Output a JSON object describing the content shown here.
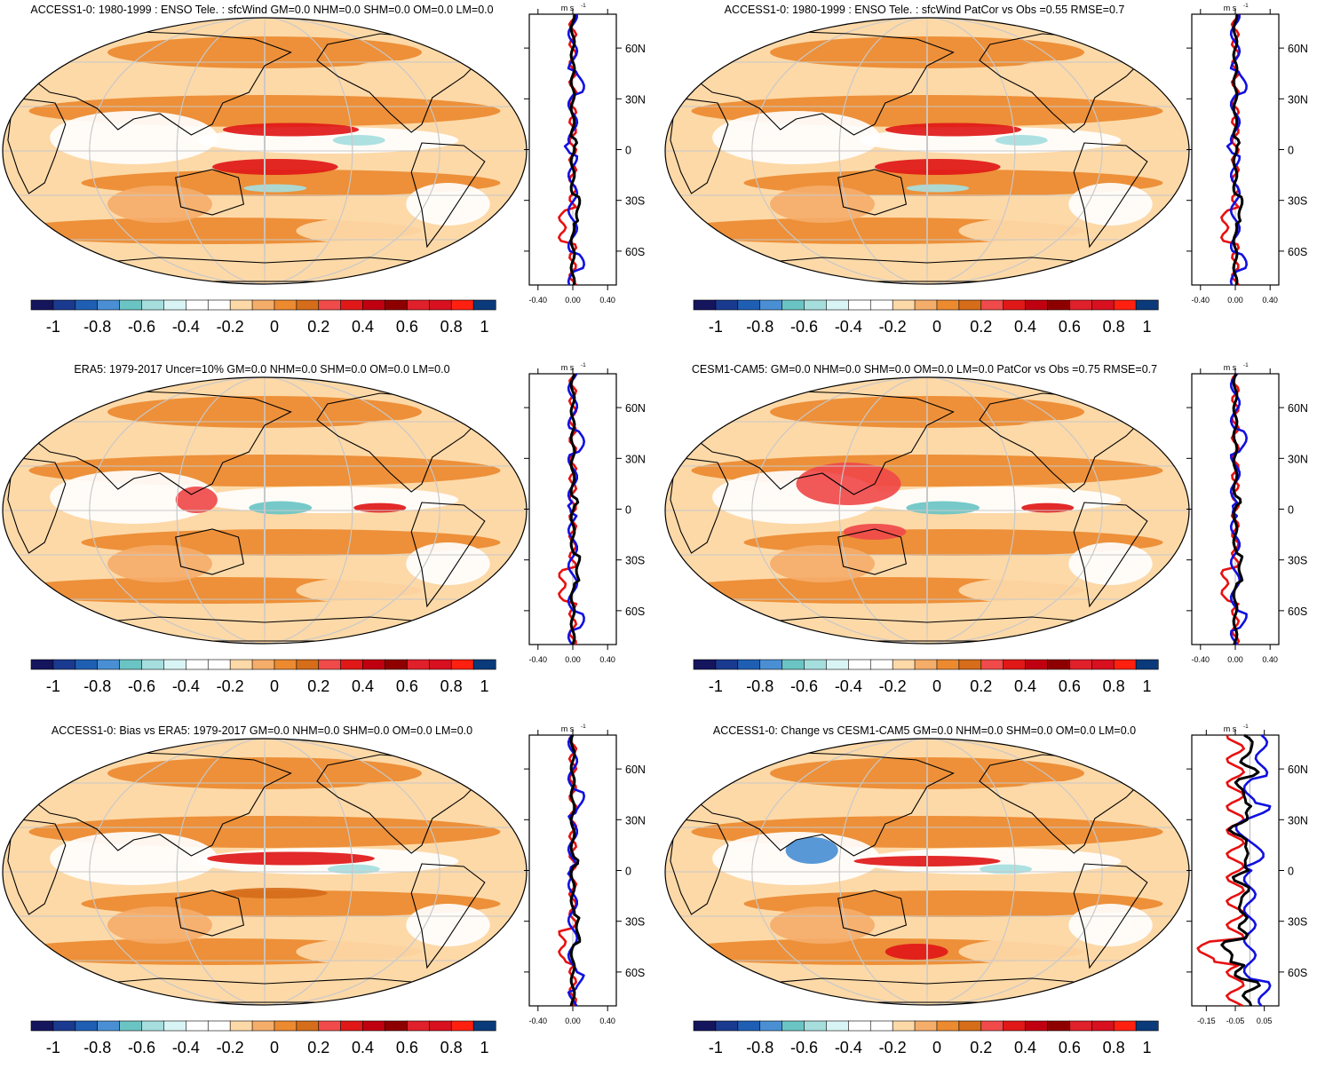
{
  "colors": {
    "palette": [
      "#15155e",
      "#1a3a8f",
      "#1f5fb3",
      "#4a8fd4",
      "#6bc4c4",
      "#a6dede",
      "#d9f4f4",
      "#ffffff",
      "#ffffff",
      "#fdd9a8",
      "#f5ad6a",
      "#ec8a30",
      "#d56d1a",
      "#f04a4a",
      "#e01818",
      "#c00010",
      "#8e0000",
      "#e0202a",
      "#d81020",
      "#ff2010",
      "#0a3a7a"
    ],
    "ocean_base": "#ffffff",
    "land_line": "#000000",
    "grid_line": "#c8c8c8",
    "profile_red": "#e81010",
    "profile_blue": "#1010e0",
    "profile_black": "#000000"
  },
  "colorbar_labels": [
    "-1",
    "-0.8",
    "-0.6",
    "-0.4",
    "-0.2",
    "0",
    "0.2",
    "0.4",
    "0.6",
    "0.8",
    "1"
  ],
  "profile_unit": "m s",
  "profile_unit_sup": "-1",
  "lat_labels": [
    "60N",
    "30N",
    "0",
    "30S",
    "60S"
  ],
  "panels": [
    {
      "title": "ACCESS1-0: 1980-1999 : ENSO Tele. : sfcWind GM=0.0 NHM=0.0 SHM=0.0 OM=0.0 LM=0.0",
      "x_ticks": [
        "-0.40",
        "0.00",
        "0.40"
      ],
      "x_range": [
        -0.5,
        0.5
      ]
    },
    {
      "title": "ACCESS1-0: 1980-1999 : ENSO Tele. : sfcWind PatCor vs Obs =0.55 RMSE=0.7",
      "x_ticks": [
        "-0.40",
        "0.00",
        "0.40"
      ],
      "x_range": [
        -0.5,
        0.5
      ]
    },
    {
      "title": "ERA5: 1979-2017 Uncer=10% GM=0.0 NHM=0.0 SHM=0.0 OM=0.0 LM=0.0",
      "x_ticks": [
        "-0.40",
        "0.00",
        "0.40"
      ],
      "x_range": [
        -0.5,
        0.5
      ]
    },
    {
      "title": "CESM1-CAM5: GM=0.0 NHM=0.0 SHM=0.0 OM=0.0 LM=0.0 PatCor vs Obs =0.75 RMSE=0.7",
      "x_ticks": [
        "-0.40",
        "0.00",
        "0.40"
      ],
      "x_range": [
        -0.5,
        0.5
      ]
    },
    {
      "title": "ACCESS1-0: Bias vs ERA5: 1979-2017 GM=0.0 NHM=0.0 SHM=0.0 OM=0.0 LM=0.0",
      "x_ticks": [
        "-0.40",
        "0.00",
        "0.40"
      ],
      "x_range": [
        -0.5,
        0.5
      ]
    },
    {
      "title": "ACCESS1-0: Change vs CESM1-CAM5 GM=0.0 NHM=0.0 SHM=0.0 OM=0.0 LM=0.0",
      "x_ticks": [
        "-0.15",
        "-0.05",
        "0.05"
      ],
      "x_range": [
        -0.2,
        0.1
      ]
    }
  ]
}
